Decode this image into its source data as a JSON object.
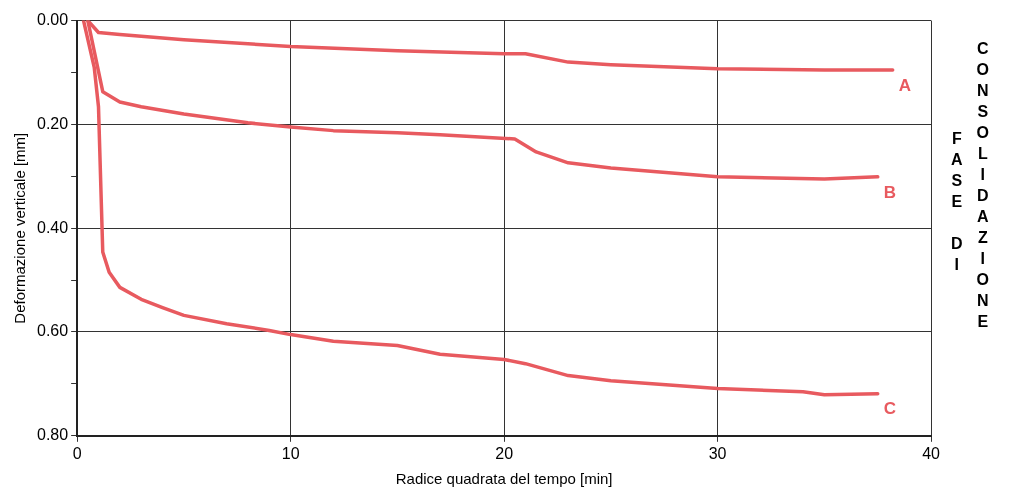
{
  "chart_data": {
    "type": "line",
    "xlabel": "Radice quadrata del tempo [min]",
    "ylabel": "Deformazione verticale [mm]",
    "annotations": [
      "FASE DI",
      "CONSOLIDAZIONE"
    ],
    "xlim": [
      0,
      40
    ],
    "xticks": [
      0,
      10,
      20,
      30,
      40
    ],
    "ylim": [
      0.8,
      0
    ],
    "yticks": [
      {
        "value": 0,
        "label": "0.00"
      },
      {
        "value": 0.1,
        "label": null
      },
      {
        "value": 0.2,
        "label": "0.20"
      },
      {
        "value": 0.3,
        "label": null
      },
      {
        "value": 0.4,
        "label": "0.40"
      },
      {
        "value": 0.5,
        "label": null
      },
      {
        "value": 0.6,
        "label": "0.60"
      },
      {
        "value": 0.7,
        "label": null
      },
      {
        "value": 0.8,
        "label": "0.80"
      }
    ],
    "grid": true,
    "legend": false,
    "marker": "none",
    "line_style": "solid",
    "series": [
      {
        "name": "A",
        "color": "#e85a5f",
        "x": [
          0.5,
          1,
          2,
          5,
          10,
          15,
          20,
          21,
          23,
          25,
          30,
          35,
          38.2
        ],
        "values": [
          0,
          0.023,
          0.027,
          0.037,
          0.05,
          0.058,
          0.064,
          0.064,
          0.08,
          0.085,
          0.093,
          0.095,
          0.095
        ]
      },
      {
        "name": "B",
        "color": "#e85a5f",
        "x": [
          0.5,
          1.2,
          2,
          3,
          5,
          8,
          10,
          12,
          15,
          17,
          20.5,
          21.5,
          23,
          25,
          30,
          35,
          37.5
        ],
        "values": [
          0,
          0.137,
          0.157,
          0.166,
          0.18,
          0.197,
          0.205,
          0.212,
          0.216,
          0.22,
          0.228,
          0.253,
          0.274,
          0.284,
          0.301,
          0.305,
          0.301
        ]
      },
      {
        "name": "C",
        "color": "#e85a5f",
        "x": [
          0.3,
          0.8,
          1,
          1.2,
          1.5,
          2,
          3,
          4,
          5,
          7,
          9,
          10,
          12,
          15,
          17,
          20,
          21,
          23,
          25,
          30,
          34,
          35,
          37.5
        ],
        "values": [
          0,
          0.09,
          0.166,
          0.446,
          0.485,
          0.514,
          0.537,
          0.553,
          0.568,
          0.584,
          0.597,
          0.605,
          0.618,
          0.626,
          0.643,
          0.653,
          0.661,
          0.684,
          0.694,
          0.709,
          0.715,
          0.721,
          0.719
        ]
      }
    ]
  }
}
